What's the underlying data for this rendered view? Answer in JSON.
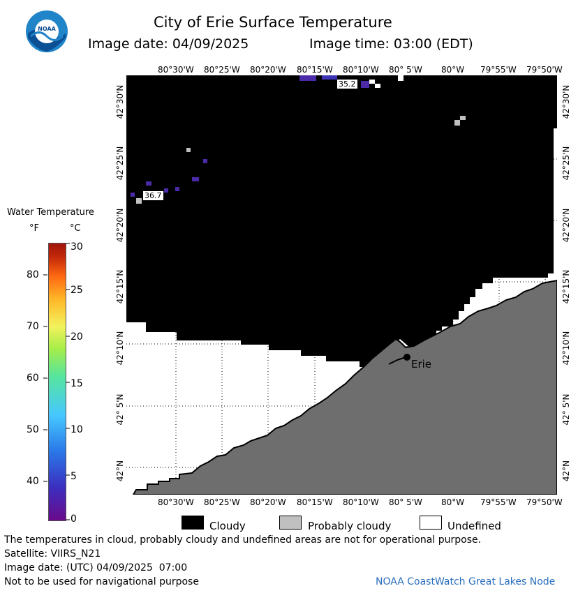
{
  "header": {
    "title": "City of Erie Surface Temperature",
    "image_date": "Image date: 04/09/2025",
    "image_time": "Image time: 03:00 (EDT)"
  },
  "logo": {
    "text": "NOAA"
  },
  "map": {
    "lon_labels": [
      "80°30'W",
      "80°25'W",
      "80°20'W",
      "80°15'W",
      "80°10'W",
      "80° 5'W",
      "80°W",
      "79°55'W",
      "79°50'W"
    ],
    "lat_labels": [
      "42°30'N",
      "42°25'N",
      "42°20'N",
      "42°15'N",
      "42°10'N",
      "42° 5'N",
      "42°N"
    ],
    "city": "Erie",
    "point_labels": [
      "35.2",
      "36.7"
    ]
  },
  "colorbar": {
    "title": "Water Temperature",
    "unit_f": "°F",
    "unit_c": "°C",
    "f_ticks": [
      "80",
      "70",
      "60",
      "50",
      "40"
    ],
    "c_ticks": [
      "30",
      "25",
      "20",
      "15",
      "10",
      "5",
      "0"
    ]
  },
  "legend": {
    "cloudy": "Cloudy",
    "probably_cloudy": "Probably cloudy",
    "undefined": "Undefined"
  },
  "footer": {
    "disclaimer": "The temperatures in cloud, probably cloudy and undefined areas are not for operational purpose.",
    "satellite": "Satellite: VIIRS_N21",
    "utc_date": "Image date: (UTC) 04/09/2025  07:00",
    "nav_warning": "Not to be used for navigational purpose",
    "credit": "NOAA CoastWatch Great Lakes Node"
  },
  "colors": {
    "cloudy": "#000000",
    "probably_cloudy": "#c0c0c0",
    "undefined": "#ffffff",
    "land": "#6e6e6e",
    "credit": "#2a6ebd"
  }
}
